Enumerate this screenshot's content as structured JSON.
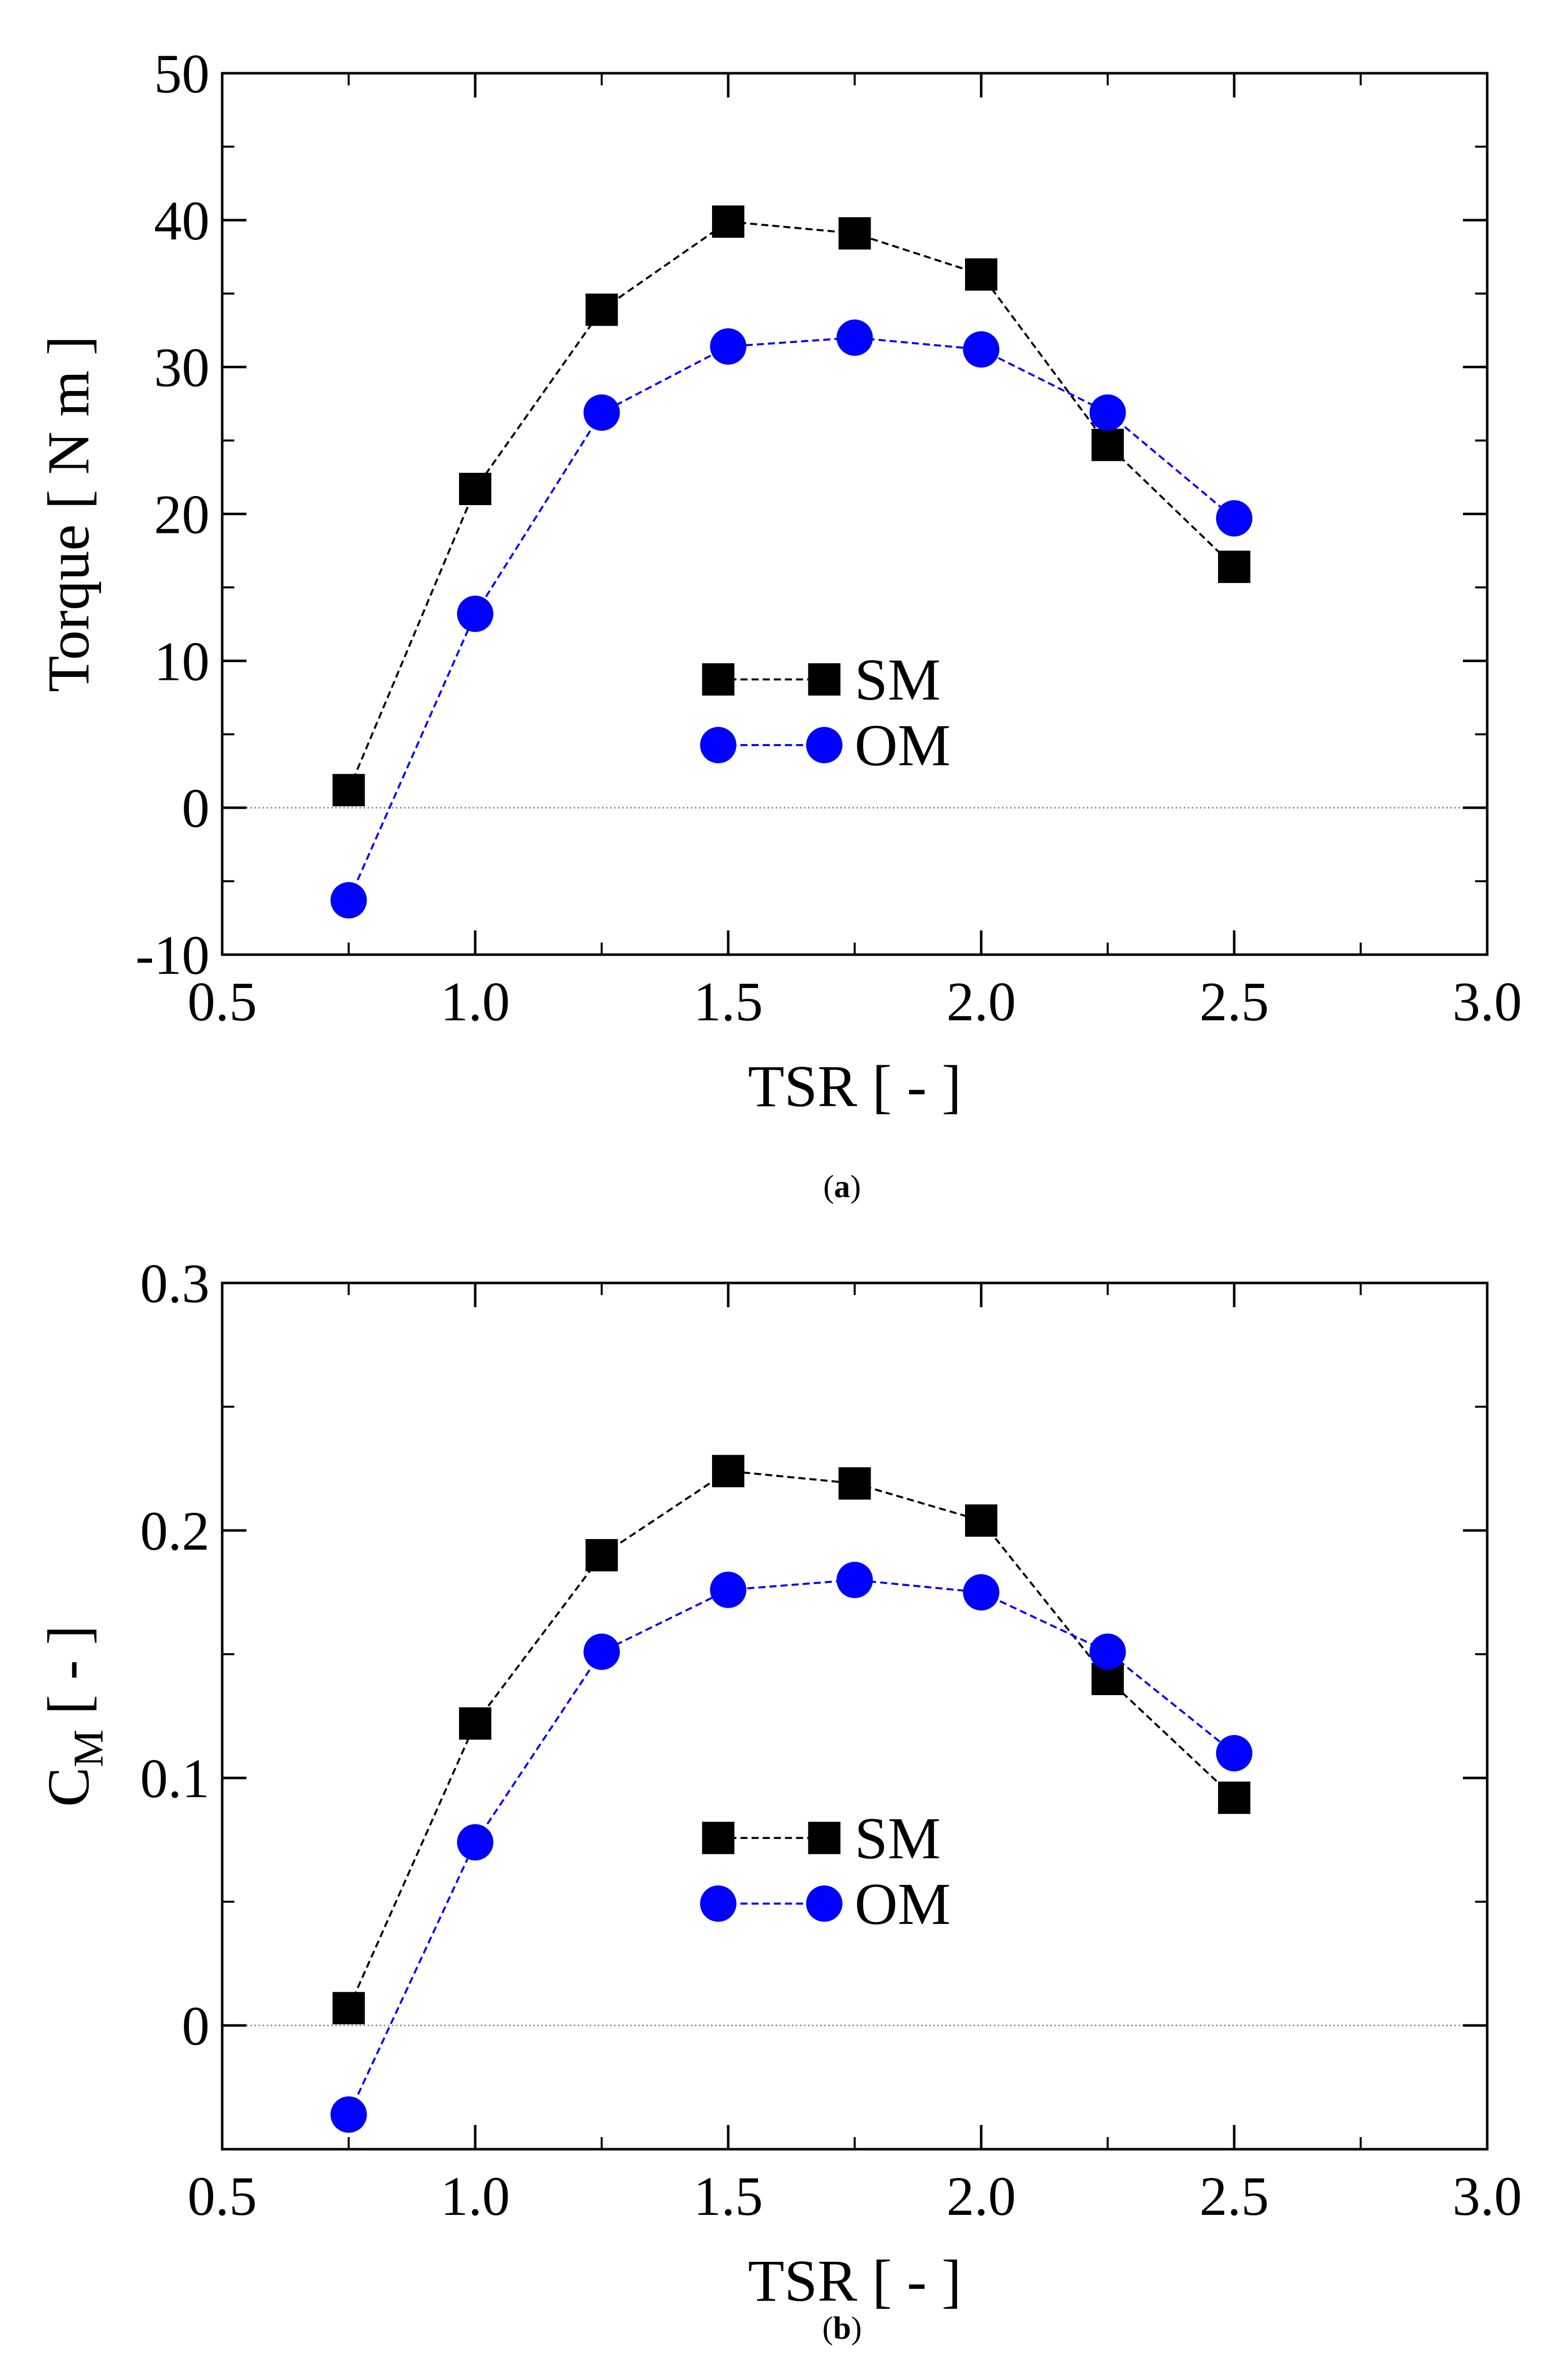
{
  "chart_data": [
    {
      "type": "line",
      "panel": "a",
      "caption_prefix": "(",
      "caption_letter": "a",
      "caption_suffix": ")",
      "xlabel": "TSR [ - ]",
      "ylabel": "Torque [ N m ]",
      "xlim": [
        0.5,
        3.0
      ],
      "ylim": [
        -10,
        50
      ],
      "xticks": [
        0.5,
        1.0,
        1.5,
        2.0,
        2.5,
        3.0
      ],
      "xtick_labels": [
        "0.5",
        "1.0",
        "1.5",
        "2.0",
        "2.5",
        "3.0"
      ],
      "yticks": [
        -10,
        0,
        10,
        20,
        30,
        40,
        50
      ],
      "ytick_labels": [
        "-10",
        "0",
        "10",
        "20",
        "30",
        "40",
        "50"
      ],
      "y_minor_step": 5,
      "x_minor_step": 0.25,
      "zero_line": true,
      "legend": {
        "placement": "center",
        "anchor": [
          1.65,
          6.5
        ]
      },
      "series": [
        {
          "name": "SM",
          "marker": "square",
          "color": "#000000",
          "x": [
            0.75,
            1.0,
            1.25,
            1.5,
            1.75,
            2.0,
            2.25,
            2.5
          ],
          "values": [
            1.2,
            21.7,
            33.9,
            39.9,
            39.1,
            36.3,
            24.7,
            16.4
          ]
        },
        {
          "name": "OM",
          "marker": "circle",
          "color": "#0000ff",
          "x": [
            0.75,
            1.0,
            1.25,
            1.5,
            1.75,
            2.0,
            2.25,
            2.5
          ],
          "values": [
            -6.3,
            13.2,
            26.9,
            31.4,
            32.0,
            31.2,
            26.9,
            19.7
          ]
        }
      ]
    },
    {
      "type": "line",
      "panel": "b",
      "caption_prefix": "(",
      "caption_letter": "b",
      "caption_suffix": ")",
      "xlabel": "TSR [ - ]",
      "ylabel_main": "C",
      "ylabel_sub": "M",
      "ylabel_rest": " [ - ]",
      "xlim": [
        0.5,
        3.0
      ],
      "ylim": [
        -0.05,
        0.3
      ],
      "xticks": [
        0.5,
        1.0,
        1.5,
        2.0,
        2.5,
        3.0
      ],
      "xtick_labels": [
        "0.5",
        "1.0",
        "1.5",
        "2.0",
        "2.5",
        "3.0"
      ],
      "yticks": [
        0,
        0.1,
        0.2,
        0.3
      ],
      "ytick_labels": [
        "0",
        "0.1",
        "0.2",
        "0.3"
      ],
      "y_minor_step": 0.05,
      "x_minor_step": 0.25,
      "zero_line": true,
      "legend": {
        "placement": "center",
        "anchor": [
          1.65,
          0.0625
        ]
      },
      "series": [
        {
          "name": "SM",
          "marker": "square",
          "color": "#000000",
          "x": [
            0.75,
            1.0,
            1.25,
            1.5,
            1.75,
            2.0,
            2.25,
            2.5
          ],
          "values": [
            0.007,
            0.122,
            0.19,
            0.224,
            0.219,
            0.204,
            0.14,
            0.092
          ]
        },
        {
          "name": "OM",
          "marker": "circle",
          "color": "#0000ff",
          "x": [
            0.75,
            1.0,
            1.25,
            1.5,
            1.75,
            2.0,
            2.25,
            2.5
          ],
          "values": [
            -0.036,
            0.074,
            0.151,
            0.176,
            0.18,
            0.175,
            0.151,
            0.11
          ]
        }
      ]
    }
  ]
}
